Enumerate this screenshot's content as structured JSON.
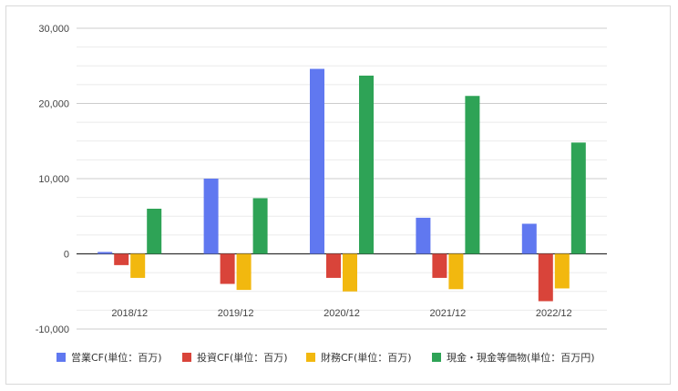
{
  "chart_data": {
    "type": "bar",
    "categories": [
      "2018/12",
      "2019/12",
      "2020/12",
      "2021/12",
      "2022/12"
    ],
    "series": [
      {
        "name": "営業CF(単位：百万)",
        "color": "#6078f0",
        "values": [
          250,
          10000,
          24600,
          4800,
          4000
        ]
      },
      {
        "name": "投資CF(単位：百万)",
        "color": "#d9443a",
        "values": [
          -1500,
          -4000,
          -3200,
          -3200,
          -6300
        ]
      },
      {
        "name": "財務CF(単位：百万)",
        "color": "#f2b80f",
        "values": [
          -3200,
          -4800,
          -5000,
          -4700,
          -4600
        ]
      },
      {
        "name": "現金・現金等価物(単位：百万円)",
        "color": "#2ea356",
        "values": [
          6000,
          7400,
          23700,
          21000,
          14800
        ]
      }
    ],
    "yticks": [
      "30,000",
      "20,000",
      "10,000",
      "0",
      "-10,000"
    ],
    "ytick_values": [
      30000,
      20000,
      10000,
      0,
      -10000
    ],
    "ylim": [
      -10000,
      30000
    ],
    "grid": true,
    "legend": "bottom"
  }
}
